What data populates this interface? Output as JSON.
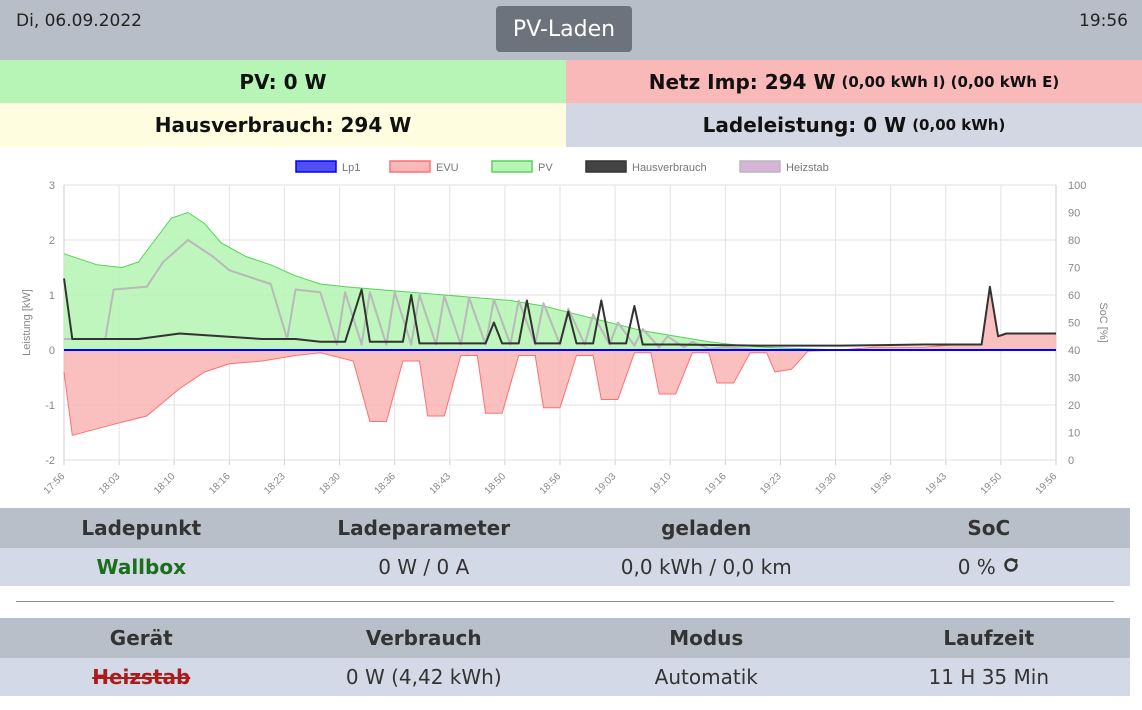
{
  "header": {
    "date": "Di, 06.09.2022",
    "mode_button": "PV-Laden",
    "time": "19:56"
  },
  "tiles": {
    "pv_label": "PV: 0 W",
    "grid_label": "Netz Imp: 294 W",
    "grid_detail": "(0,00 kWh I) (0,00 kWh E)",
    "house_label": "Hausverbrauch: 294 W",
    "charge_label": "Ladeleistung: 0 W",
    "charge_detail": "(0,00 kWh)"
  },
  "colors": {
    "pv": "#b7f5b6",
    "grid": "#f9b9b8",
    "house": "#fefde0",
    "charge": "#d3d7e4",
    "header": "#b8bec8",
    "mode_button": "#6c737d"
  },
  "chart_data": {
    "type": "line",
    "legend_position": "top",
    "ylabel": "Leistung [kW]",
    "y2label": "SoC [%]",
    "ylim": [
      -2,
      3
    ],
    "y2lim": [
      0,
      100
    ],
    "yticks": [
      -2,
      -1,
      0,
      1,
      2,
      3
    ],
    "y2ticks": [
      0,
      10,
      20,
      30,
      40,
      50,
      60,
      70,
      80,
      90,
      100
    ],
    "x_range_min": [
      1076,
      1196
    ],
    "xtick_labels": [
      "17:56",
      "18:03",
      "18:10",
      "18:16",
      "18:23",
      "18:30",
      "18:36",
      "18:43",
      "18:50",
      "18:56",
      "19:03",
      "19:10",
      "19:16",
      "19:23",
      "19:30",
      "19:36",
      "19:43",
      "19:50",
      "19:56"
    ],
    "grid": true,
    "series": [
      {
        "name": "Lp1",
        "color": "#0000ff",
        "fill": "#4f4ff4",
        "values": [
          [
            1076,
            0
          ],
          [
            1196,
            0
          ]
        ]
      },
      {
        "name": "EVU",
        "color": "#ff7070",
        "fill": "#f9b9b8",
        "values": [
          [
            1076,
            -0.4
          ],
          [
            1077,
            -1.55
          ],
          [
            1082,
            -1.35
          ],
          [
            1086,
            -1.2
          ],
          [
            1090,
            -0.7
          ],
          [
            1093,
            -0.4
          ],
          [
            1096,
            -0.25
          ],
          [
            1100,
            -0.2
          ],
          [
            1104,
            -0.1
          ],
          [
            1107,
            -0.05
          ],
          [
            1111,
            -0.2
          ],
          [
            1113,
            -1.3
          ],
          [
            1115,
            -1.3
          ],
          [
            1117,
            -0.2
          ],
          [
            1119,
            -0.2
          ],
          [
            1120,
            -1.2
          ],
          [
            1122,
            -1.2
          ],
          [
            1124,
            -0.1
          ],
          [
            1126,
            -0.1
          ],
          [
            1127,
            -1.15
          ],
          [
            1129,
            -1.15
          ],
          [
            1131,
            -0.1
          ],
          [
            1133,
            -0.1
          ],
          [
            1134,
            -1.05
          ],
          [
            1136,
            -1.05
          ],
          [
            1138,
            -0.1
          ],
          [
            1140,
            -0.1
          ],
          [
            1141,
            -0.9
          ],
          [
            1143,
            -0.9
          ],
          [
            1145,
            -0.05
          ],
          [
            1147,
            -0.05
          ],
          [
            1148,
            -0.8
          ],
          [
            1150,
            -0.8
          ],
          [
            1152,
            -0.05
          ],
          [
            1154,
            -0.05
          ],
          [
            1155,
            -0.6
          ],
          [
            1157,
            -0.6
          ],
          [
            1159,
            -0.05
          ],
          [
            1161,
            -0.05
          ],
          [
            1162,
            -0.4
          ],
          [
            1164,
            -0.35
          ],
          [
            1166,
            -0.02
          ],
          [
            1170,
            0
          ],
          [
            1174,
            0.05
          ],
          [
            1180,
            0.05
          ],
          [
            1184,
            0.1
          ],
          [
            1187,
            0.1
          ],
          [
            1188,
            1.15
          ],
          [
            1189,
            0.25
          ],
          [
            1190,
            0.3
          ],
          [
            1196,
            0.3
          ]
        ]
      },
      {
        "name": "PV",
        "color": "#56d356",
        "fill": "#b7f5b6",
        "values": [
          [
            1076,
            1.75
          ],
          [
            1080,
            1.55
          ],
          [
            1083,
            1.5
          ],
          [
            1085,
            1.6
          ],
          [
            1087,
            2.0
          ],
          [
            1089,
            2.4
          ],
          [
            1091,
            2.5
          ],
          [
            1093,
            2.3
          ],
          [
            1095,
            1.95
          ],
          [
            1098,
            1.7
          ],
          [
            1101,
            1.55
          ],
          [
            1104,
            1.35
          ],
          [
            1107,
            1.2
          ],
          [
            1110,
            1.15
          ],
          [
            1114,
            1.1
          ],
          [
            1118,
            1.05
          ],
          [
            1122,
            1.0
          ],
          [
            1126,
            0.95
          ],
          [
            1130,
            0.9
          ],
          [
            1134,
            0.8
          ],
          [
            1138,
            0.65
          ],
          [
            1142,
            0.5
          ],
          [
            1146,
            0.35
          ],
          [
            1150,
            0.25
          ],
          [
            1154,
            0.15
          ],
          [
            1158,
            0.08
          ],
          [
            1162,
            0.04
          ],
          [
            1166,
            0.02
          ],
          [
            1170,
            0
          ],
          [
            1196,
            0
          ]
        ]
      },
      {
        "name": "Hausverbrauch",
        "color": "#333333",
        "fill": "#444444",
        "values": [
          [
            1076,
            1.3
          ],
          [
            1077,
            0.2
          ],
          [
            1085,
            0.2
          ],
          [
            1090,
            0.3
          ],
          [
            1095,
            0.25
          ],
          [
            1100,
            0.2
          ],
          [
            1104,
            0.2
          ],
          [
            1107,
            0.15
          ],
          [
            1110,
            0.15
          ],
          [
            1112,
            1.1
          ],
          [
            1113,
            0.15
          ],
          [
            1117,
            0.15
          ],
          [
            1118,
            1.0
          ],
          [
            1119,
            0.12
          ],
          [
            1127,
            0.12
          ],
          [
            1128,
            0.5
          ],
          [
            1129,
            0.12
          ],
          [
            1131,
            0.12
          ],
          [
            1132,
            0.9
          ],
          [
            1133,
            0.12
          ],
          [
            1136,
            0.12
          ],
          [
            1137,
            0.7
          ],
          [
            1138,
            0.12
          ],
          [
            1140,
            0.12
          ],
          [
            1141,
            0.9
          ],
          [
            1142,
            0.12
          ],
          [
            1144,
            0.12
          ],
          [
            1145,
            0.8
          ],
          [
            1146,
            0.1
          ],
          [
            1150,
            0.1
          ],
          [
            1160,
            0.08
          ],
          [
            1170,
            0.08
          ],
          [
            1180,
            0.1
          ],
          [
            1187,
            0.1
          ],
          [
            1188,
            1.15
          ],
          [
            1189,
            0.25
          ],
          [
            1190,
            0.3
          ],
          [
            1196,
            0.3
          ]
        ]
      },
      {
        "name": "Heizstab",
        "color": "#b9b9b9",
        "fill": "#d8b4d8",
        "values": [
          [
            1076,
            0.2
          ],
          [
            1081,
            0.2
          ],
          [
            1082,
            1.1
          ],
          [
            1086,
            1.15
          ],
          [
            1088,
            1.6
          ],
          [
            1091,
            2.0
          ],
          [
            1094,
            1.7
          ],
          [
            1096,
            1.45
          ],
          [
            1099,
            1.3
          ],
          [
            1101,
            1.2
          ],
          [
            1103,
            0.2
          ],
          [
            1104,
            1.1
          ],
          [
            1107,
            1.05
          ],
          [
            1109,
            0.1
          ],
          [
            1110,
            1.05
          ],
          [
            1112,
            0.1
          ],
          [
            1113,
            1.05
          ],
          [
            1115,
            0.1
          ],
          [
            1116,
            1.05
          ],
          [
            1118,
            0.1
          ],
          [
            1119,
            1.0
          ],
          [
            1121,
            0.1
          ],
          [
            1122,
            0.98
          ],
          [
            1124,
            0.1
          ],
          [
            1125,
            0.95
          ],
          [
            1127,
            0.1
          ],
          [
            1128,
            0.92
          ],
          [
            1130,
            0.1
          ],
          [
            1131,
            0.9
          ],
          [
            1133,
            0.1
          ],
          [
            1134,
            0.85
          ],
          [
            1136,
            0.1
          ],
          [
            1137,
            0.75
          ],
          [
            1139,
            0.1
          ],
          [
            1140,
            0.65
          ],
          [
            1142,
            0.1
          ],
          [
            1143,
            0.5
          ],
          [
            1145,
            0.08
          ],
          [
            1146,
            0.38
          ],
          [
            1148,
            0.05
          ],
          [
            1149,
            0.25
          ],
          [
            1151,
            0.05
          ],
          [
            1152,
            0.15
          ],
          [
            1154,
            0.02
          ],
          [
            1156,
            0.05
          ],
          [
            1160,
            0
          ],
          [
            1196,
            0
          ]
        ]
      }
    ]
  },
  "chargepoints": {
    "headers": [
      "Ladepunkt",
      "Ladeparameter",
      "geladen",
      "SoC"
    ],
    "rows": [
      {
        "name": "Wallbox",
        "params": "0 W / 0 A",
        "charged": "0,0 kWh / 0,0 km",
        "soc": "0 %",
        "soc_icon": "refresh-icon"
      }
    ]
  },
  "devices": {
    "headers": [
      "Gerät",
      "Verbrauch",
      "Modus",
      "Laufzeit"
    ],
    "rows": [
      {
        "name": "Heizstab",
        "consumption": "0 W (4,42 kWh)",
        "mode": "Automatik",
        "runtime": "11 H 35 Min"
      }
    ]
  }
}
